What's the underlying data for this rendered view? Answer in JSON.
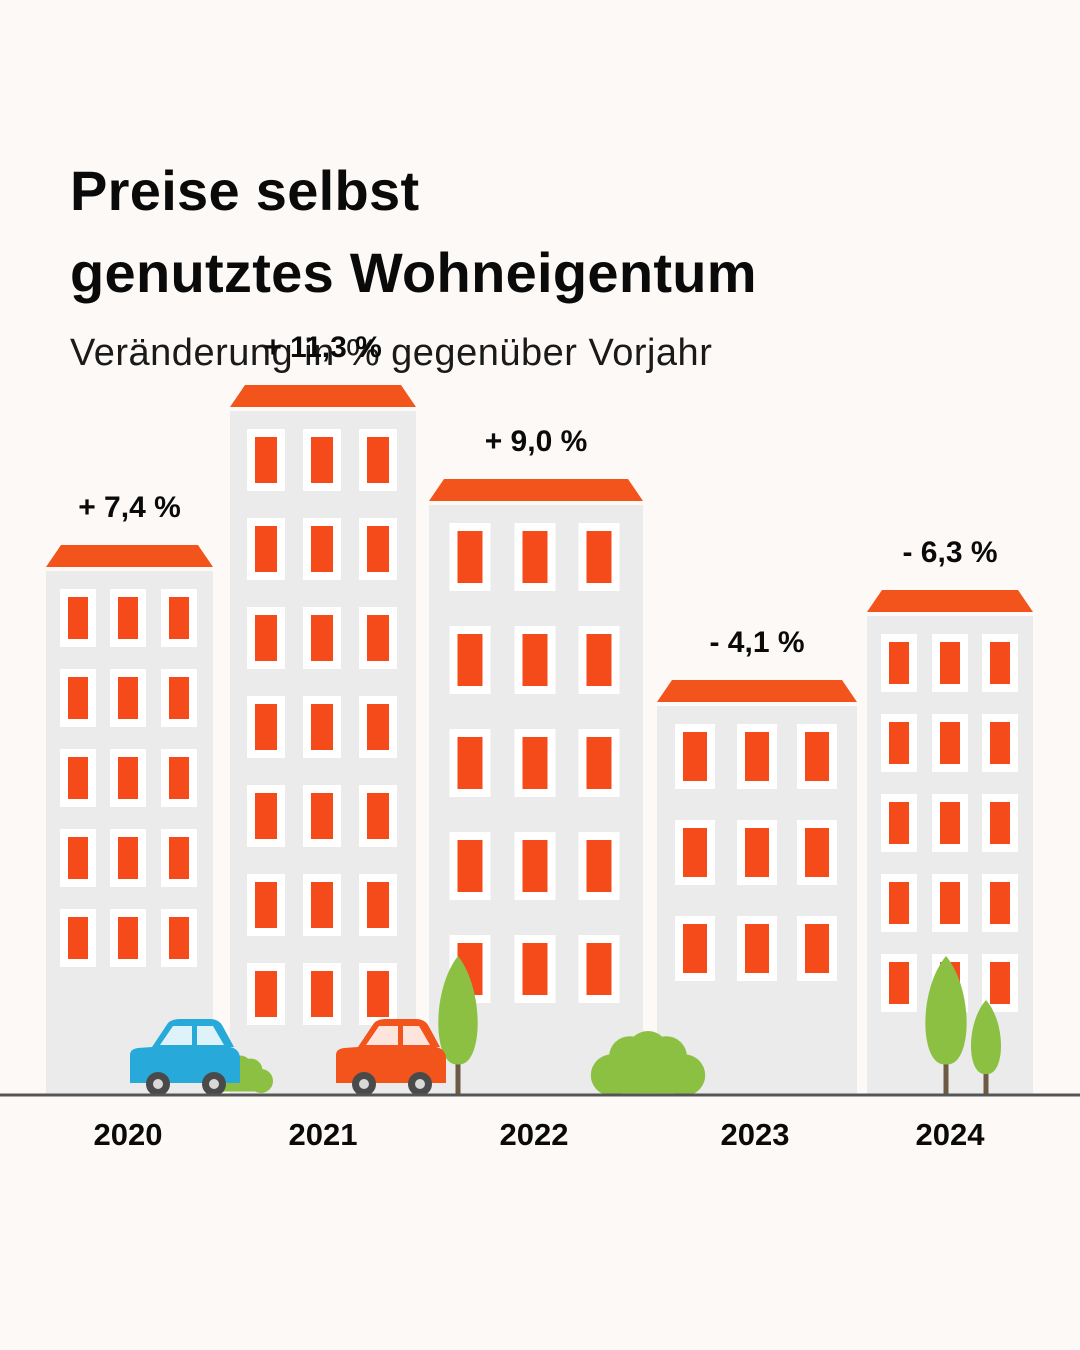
{
  "header": {
    "title_line1": "Preise selbst",
    "title_line2": "genutztes Wohneigentum",
    "subtitle": "Veränderung in % gegenüber Vorjahr"
  },
  "colors": {
    "background": "#fcf9f6",
    "building": "#ebebeb",
    "roof": "#f2541b",
    "window": "#f54a1a",
    "window_frame": "#ffffff",
    "tree": "#8cc043",
    "trunk": "#6d5a45",
    "car_blue": "#27a9d9",
    "car_red": "#f2541b",
    "ground": "#555555"
  },
  "chart_data": {
    "type": "bar",
    "title": "Preise selbst genutztes Wohneigentum",
    "subtitle": "Veränderung in % gegenüber Vorjahr",
    "categories": [
      "2020",
      "2021",
      "2022",
      "2023",
      "2024"
    ],
    "values": [
      7.4,
      11.3,
      9.0,
      -4.1,
      -6.3
    ],
    "value_labels": [
      "+ 7,4 %",
      "+ 11,3 %",
      "+ 9,0 %",
      "- 4,1 %",
      "- 6,3 %"
    ],
    "unit": "%",
    "xlabel": "",
    "ylabel": "Veränderung in % gegenüber Vorjahr"
  }
}
